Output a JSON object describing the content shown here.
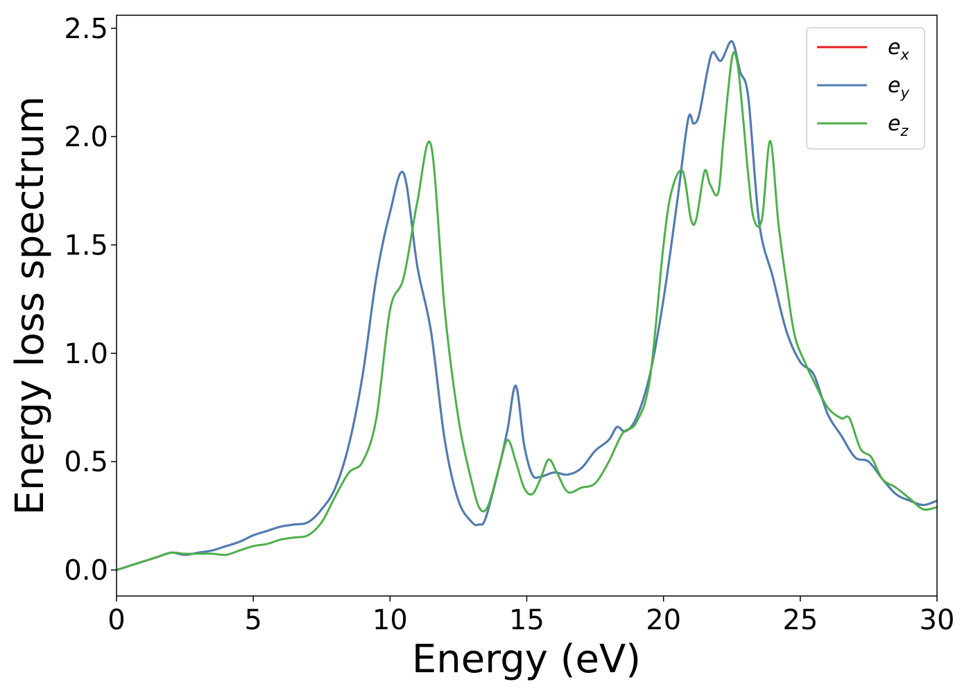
{
  "chart_data": {
    "type": "line",
    "xlabel": "Energy (eV)",
    "ylabel": "Energy loss spectrum",
    "xlim": [
      0,
      30
    ],
    "ylim": [
      -0.12,
      2.56
    ],
    "xticks": [
      0,
      5,
      10,
      15,
      20,
      25,
      30
    ],
    "xtick_labels": [
      "0",
      "5",
      "10",
      "15",
      "20",
      "25",
      "30"
    ],
    "yticks": [
      0.0,
      0.5,
      1.0,
      1.5,
      2.0,
      2.5
    ],
    "ytick_labels": [
      "0.0",
      "0.5",
      "1.0",
      "1.5",
      "2.0",
      "2.5"
    ],
    "grid": false,
    "legend_position": "top-right",
    "series": [
      {
        "name": "e",
        "subscript": "x",
        "color": "#e41a1c",
        "x": [
          0,
          0.5,
          1,
          1.5,
          2,
          2.5,
          3,
          3.5,
          4,
          4.5,
          5,
          5.5,
          6,
          6.5,
          7,
          7.5,
          8,
          8.5,
          9,
          9.5,
          10,
          10.5,
          11,
          11.5,
          12,
          12.5,
          13,
          13.25,
          13.5,
          14,
          14.3,
          14.6,
          14.9,
          15.2,
          15.5,
          16,
          16.5,
          17,
          17.5,
          18,
          18.3,
          18.6,
          19,
          19.5,
          20,
          20.5,
          20.9,
          21.1,
          21.3,
          21.6,
          21.8,
          22.1,
          22.5,
          22.8,
          23.1,
          23.5,
          24,
          24.5,
          25,
          25.5,
          26,
          26.5,
          27,
          27.5,
          28,
          28.5,
          29,
          29.5,
          30
        ],
        "y": [
          0.0,
          0.02,
          0.04,
          0.06,
          0.08,
          0.07,
          0.08,
          0.09,
          0.11,
          0.13,
          0.16,
          0.18,
          0.2,
          0.21,
          0.22,
          0.28,
          0.38,
          0.58,
          0.9,
          1.35,
          1.65,
          1.83,
          1.4,
          1.1,
          0.6,
          0.32,
          0.22,
          0.21,
          0.24,
          0.48,
          0.65,
          0.85,
          0.58,
          0.44,
          0.43,
          0.45,
          0.44,
          0.47,
          0.55,
          0.6,
          0.66,
          0.64,
          0.7,
          0.9,
          1.25,
          1.7,
          2.08,
          2.06,
          2.1,
          2.3,
          2.39,
          2.35,
          2.44,
          2.3,
          2.18,
          1.6,
          1.35,
          1.1,
          0.96,
          0.9,
          0.72,
          0.62,
          0.52,
          0.5,
          0.42,
          0.35,
          0.32,
          0.3,
          0.32
        ]
      },
      {
        "name": "e",
        "subscript": "y",
        "color": "#4a7fb5",
        "x": [
          0,
          0.5,
          1,
          1.5,
          2,
          2.5,
          3,
          3.5,
          4,
          4.5,
          5,
          5.5,
          6,
          6.5,
          7,
          7.5,
          8,
          8.5,
          9,
          9.5,
          10,
          10.5,
          11,
          11.5,
          12,
          12.5,
          13,
          13.25,
          13.5,
          14,
          14.3,
          14.6,
          14.9,
          15.2,
          15.5,
          16,
          16.5,
          17,
          17.5,
          18,
          18.3,
          18.6,
          19,
          19.5,
          20,
          20.5,
          20.9,
          21.1,
          21.3,
          21.6,
          21.8,
          22.1,
          22.5,
          22.8,
          23.1,
          23.5,
          24,
          24.5,
          25,
          25.5,
          26,
          26.5,
          27,
          27.5,
          28,
          28.5,
          29,
          29.5,
          30
        ],
        "y": [
          0.0,
          0.02,
          0.04,
          0.06,
          0.08,
          0.07,
          0.08,
          0.09,
          0.11,
          0.13,
          0.16,
          0.18,
          0.2,
          0.21,
          0.22,
          0.28,
          0.38,
          0.58,
          0.9,
          1.35,
          1.65,
          1.83,
          1.4,
          1.1,
          0.6,
          0.32,
          0.22,
          0.21,
          0.24,
          0.48,
          0.65,
          0.85,
          0.58,
          0.44,
          0.43,
          0.45,
          0.44,
          0.47,
          0.55,
          0.6,
          0.66,
          0.64,
          0.7,
          0.9,
          1.25,
          1.7,
          2.08,
          2.06,
          2.1,
          2.3,
          2.39,
          2.35,
          2.44,
          2.3,
          2.18,
          1.6,
          1.35,
          1.1,
          0.96,
          0.9,
          0.72,
          0.62,
          0.52,
          0.5,
          0.42,
          0.35,
          0.32,
          0.3,
          0.32
        ]
      },
      {
        "name": "e",
        "subscript": "z",
        "color": "#4daf4a",
        "x": [
          0,
          0.5,
          1,
          1.5,
          2,
          2.5,
          3,
          3.5,
          4,
          4.5,
          5,
          5.5,
          6,
          6.5,
          7,
          7.5,
          8,
          8.5,
          9,
          9.5,
          10,
          10.5,
          11,
          11.5,
          12,
          12.5,
          13,
          13.3,
          13.6,
          14,
          14.3,
          14.6,
          14.9,
          15.2,
          15.5,
          15.8,
          16.1,
          16.5,
          17,
          17.5,
          18,
          18.5,
          19,
          19.5,
          20,
          20.3,
          20.7,
          21.0,
          21.2,
          21.5,
          21.7,
          22.0,
          22.2,
          22.5,
          22.7,
          22.9,
          23.1,
          23.3,
          23.6,
          23.9,
          24.2,
          24.5,
          24.8,
          25.2,
          25.5,
          26,
          26.5,
          26.8,
          27.2,
          27.6,
          28,
          28.5,
          29,
          29.5,
          30
        ],
        "y": [
          0.0,
          0.02,
          0.04,
          0.06,
          0.08,
          0.075,
          0.075,
          0.075,
          0.07,
          0.09,
          0.11,
          0.12,
          0.14,
          0.15,
          0.16,
          0.22,
          0.34,
          0.45,
          0.5,
          0.7,
          1.2,
          1.35,
          1.7,
          1.96,
          1.2,
          0.7,
          0.4,
          0.28,
          0.3,
          0.48,
          0.6,
          0.5,
          0.38,
          0.35,
          0.42,
          0.51,
          0.45,
          0.36,
          0.38,
          0.4,
          0.5,
          0.63,
          0.68,
          0.88,
          1.5,
          1.75,
          1.84,
          1.62,
          1.62,
          1.84,
          1.78,
          1.74,
          2.0,
          2.36,
          2.34,
          2.1,
          1.82,
          1.62,
          1.62,
          1.98,
          1.6,
          1.32,
          1.08,
          0.95,
          0.87,
          0.75,
          0.7,
          0.7,
          0.56,
          0.52,
          0.42,
          0.38,
          0.33,
          0.28,
          0.29
        ]
      }
    ]
  }
}
